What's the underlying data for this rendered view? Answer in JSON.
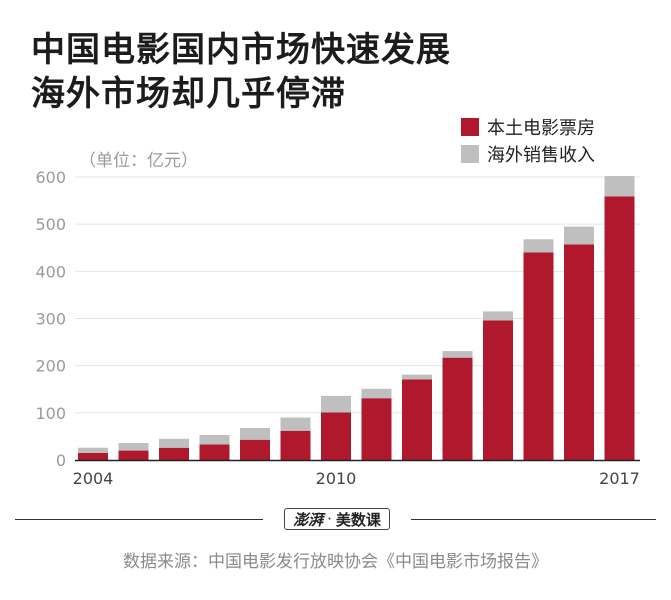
{
  "title": {
    "line1": "中国电影国内市场快速发展",
    "line2": "海外市场却几乎停滞"
  },
  "unit_label": "（单位：亿元）",
  "colors": {
    "domestic": "#b0182e",
    "overseas": "#bfbfbf",
    "grid": "#e4e4e4",
    "tick_text": "#9a9a9a",
    "axis": "#222222"
  },
  "legend": {
    "domestic": "本土电影票房",
    "overseas": "海外销售收入"
  },
  "chart_data": {
    "type": "bar",
    "stacked": true,
    "title": "中国电影国内市场快速发展 海外市场却几乎停滞",
    "ylabel": "（单位：亿元）",
    "xlabel": "",
    "ylim": [
      0,
      600
    ],
    "yticks": [
      0,
      100,
      200,
      300,
      400,
      500,
      600
    ],
    "categories": [
      "2004",
      "2005",
      "2006",
      "2007",
      "2008",
      "2009",
      "2010",
      "2011",
      "2012",
      "2013",
      "2014",
      "2015",
      "2016",
      "2017"
    ],
    "x_tick_labels": [
      "2004",
      "2010",
      "2017"
    ],
    "series": [
      {
        "name": "本土电影票房",
        "key": "domestic",
        "values": [
          15,
          20,
          26,
          33,
          43,
          62,
          101,
          131,
          171,
          217,
          296,
          440,
          457,
          559
        ]
      },
      {
        "name": "海外销售收入",
        "key": "overseas",
        "values": [
          11,
          16,
          19,
          20,
          25,
          28,
          35,
          20,
          10,
          14,
          19,
          28,
          38,
          43
        ]
      }
    ],
    "legend_position": "top-right",
    "grid": true
  },
  "footer": {
    "brand_name": "澎湃",
    "brand_sep": "·",
    "brand_section": "美数课",
    "source": "数据来源：中国电影发行放映协会《中国电影市场报告》"
  }
}
